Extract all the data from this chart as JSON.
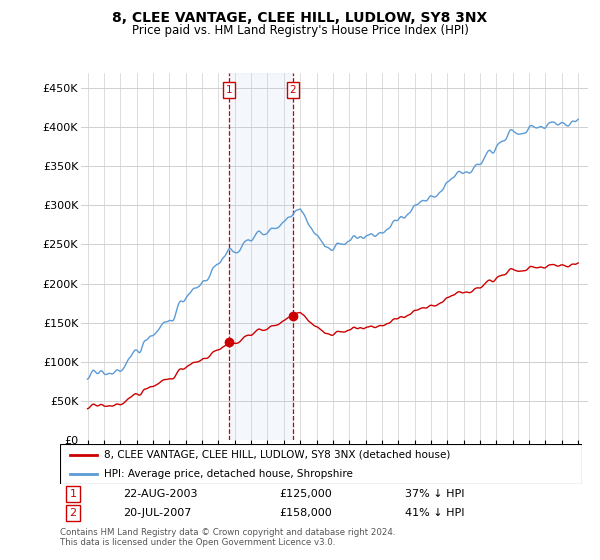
{
  "title": "8, CLEE VANTAGE, CLEE HILL, LUDLOW, SY8 3NX",
  "subtitle": "Price paid vs. HM Land Registry's House Price Index (HPI)",
  "legend_line1": "8, CLEE VANTAGE, CLEE HILL, LUDLOW, SY8 3NX (detached house)",
  "legend_line2": "HPI: Average price, detached house, Shropshire",
  "transaction1_date": "22-AUG-2003",
  "transaction1_price": "£125,000",
  "transaction1_hpi": "37% ↓ HPI",
  "transaction2_date": "20-JUL-2007",
  "transaction2_price": "£158,000",
  "transaction2_hpi": "41% ↓ HPI",
  "footnote": "Contains HM Land Registry data © Crown copyright and database right 2024.\nThis data is licensed under the Open Government Licence v3.0.",
  "ylim": [
    0,
    470000
  ],
  "yticks": [
    0,
    50000,
    100000,
    150000,
    200000,
    250000,
    300000,
    350000,
    400000,
    450000
  ],
  "ytick_labels": [
    "£0",
    "£50K",
    "£100K",
    "£150K",
    "£200K",
    "£250K",
    "£300K",
    "£350K",
    "£400K",
    "£450K"
  ],
  "hpi_color": "#5b9bd5",
  "price_color": "#cc0000",
  "transaction1_year": 2003.63,
  "transaction2_year": 2007.54,
  "transaction1_value": 125000,
  "transaction2_value": 158000,
  "background_color": "#ffffff",
  "grid_color": "#d0d0d0"
}
